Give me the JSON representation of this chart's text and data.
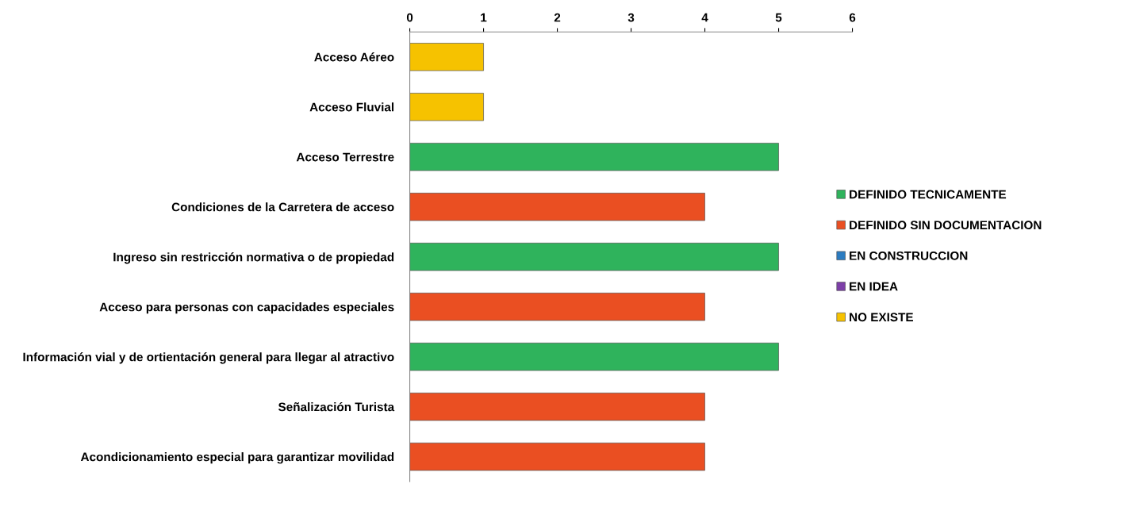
{
  "chart_data": {
    "type": "bar",
    "orientation": "horizontal",
    "categories": [
      "Acceso Aéreo",
      "Acceso Fluvial",
      "Acceso Terrestre",
      "Condiciones de la Carretera de acceso",
      "Ingreso sin restricción normativa o de propiedad",
      "Acceso para personas con capacidades especiales",
      "Información vial y de ortientación general para llegar al atractivo",
      "Señalización Turista",
      "Acondicionamiento especial para garantizar movilidad"
    ],
    "series": [
      {
        "name": "DEFINIDO TECNICAMENTE",
        "color": "#2fb35c",
        "values": [
          null,
          null,
          5,
          null,
          5,
          null,
          5,
          null,
          null
        ]
      },
      {
        "name": "DEFINIDO SIN DOCUMENTACION",
        "color": "#ea4f22",
        "values": [
          null,
          null,
          null,
          4,
          null,
          4,
          null,
          4,
          4
        ]
      },
      {
        "name": "EN CONSTRUCCION",
        "color": "#2b7cc1",
        "values": [
          null,
          null,
          null,
          null,
          null,
          null,
          null,
          null,
          null
        ]
      },
      {
        "name": "EN IDEA",
        "color": "#7d3fa8",
        "values": [
          null,
          null,
          null,
          null,
          null,
          null,
          null,
          null,
          null
        ]
      },
      {
        "name": "NO EXISTE",
        "color": "#f6c200",
        "values": [
          1,
          1,
          null,
          null,
          null,
          null,
          null,
          null,
          null
        ]
      }
    ],
    "xlim": [
      0,
      6
    ],
    "xticks": [
      0,
      1,
      2,
      3,
      4,
      5,
      6
    ],
    "grid": false,
    "legend": "right"
  }
}
